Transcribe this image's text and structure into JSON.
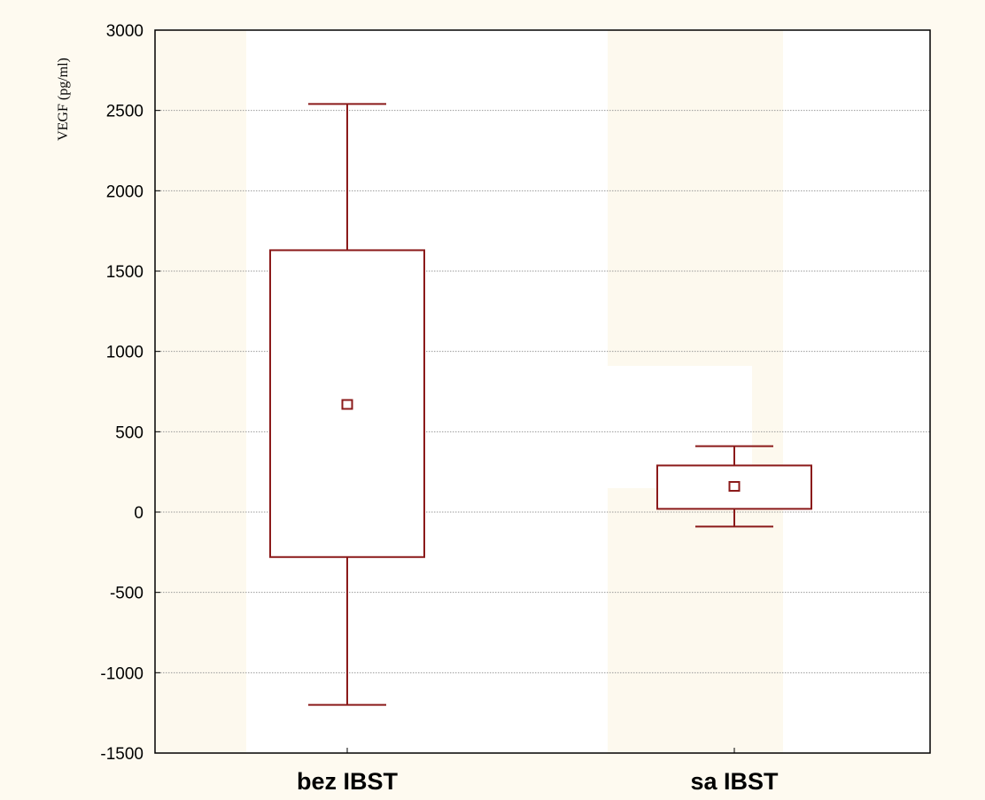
{
  "chart_data": {
    "type": "box",
    "ylabel": "VEGF (pg/ml)",
    "ylim": [
      -1500,
      3000
    ],
    "yticks": [
      -1500,
      -1000,
      -500,
      0,
      500,
      1000,
      1500,
      2000,
      2500,
      3000
    ],
    "ytick_labels": [
      "-1500",
      "-1000",
      "-500",
      "0",
      "500",
      "1000",
      "1500",
      "2000",
      "2500",
      "3000"
    ],
    "categories": [
      "bez IBST",
      "sa IBST"
    ],
    "grid": true,
    "boxes": [
      {
        "category": "bez IBST",
        "center": 670,
        "box_low": -280,
        "box_high": 1630,
        "whisker_low": -1200,
        "whisker_high": 2540
      },
      {
        "category": "sa IBST",
        "center": 160,
        "box_low": 20,
        "box_high": 290,
        "whisker_low": -90,
        "whisker_high": 410
      }
    ],
    "colors": {
      "box": "#8b1a1a",
      "grid": "#9a9a9a",
      "background": "#fefaf0",
      "plot_bg": "#ffffff"
    }
  }
}
